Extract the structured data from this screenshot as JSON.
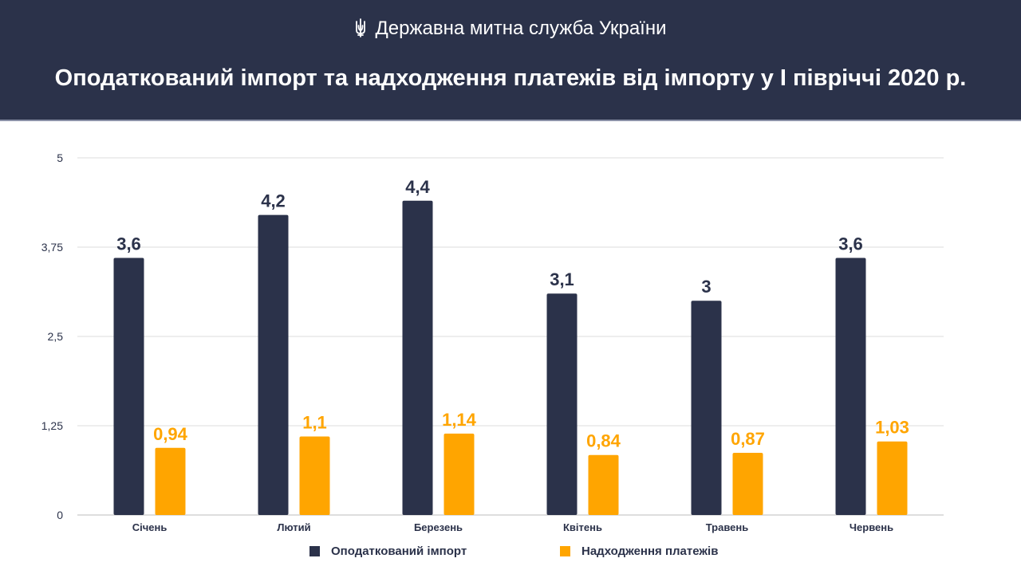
{
  "header": {
    "org_name": "Державна митна служба України",
    "emblem_icon": "trident-emblem-icon"
  },
  "colors": {
    "header_bg": "#2b324a",
    "series_import": "#2b324a",
    "series_payments": "#ffa500"
  },
  "chart_data": {
    "type": "bar",
    "title": "Оподаткований імпорт та надходження платежів від імпорту у І півріччі 2020 р.",
    "xlabel": "",
    "ylabel": "",
    "categories": [
      "Січень",
      "Лютий",
      "Березень",
      "Квітень",
      "Травень",
      "Червень"
    ],
    "ylim": [
      0,
      5
    ],
    "y_ticks": [
      0,
      1.25,
      2.5,
      3.75,
      5
    ],
    "y_tick_labels": [
      "0",
      "1,25",
      "2,5",
      "3,75",
      "5"
    ],
    "grid": true,
    "legend_position": "bottom",
    "series": [
      {
        "name": "Оподаткований імпорт",
        "values": [
          3.6,
          4.2,
          4.4,
          3.1,
          3.0,
          3.6
        ],
        "labels": [
          "3,6",
          "4,2",
          "4,4",
          "3,1",
          "3",
          "3,6"
        ]
      },
      {
        "name": "Надходження платежів",
        "values": [
          0.94,
          1.1,
          1.14,
          0.84,
          0.87,
          1.03
        ],
        "labels": [
          "0,94",
          "1,1",
          "1,14",
          "0,84",
          "0,87",
          "1,03"
        ]
      }
    ]
  }
}
